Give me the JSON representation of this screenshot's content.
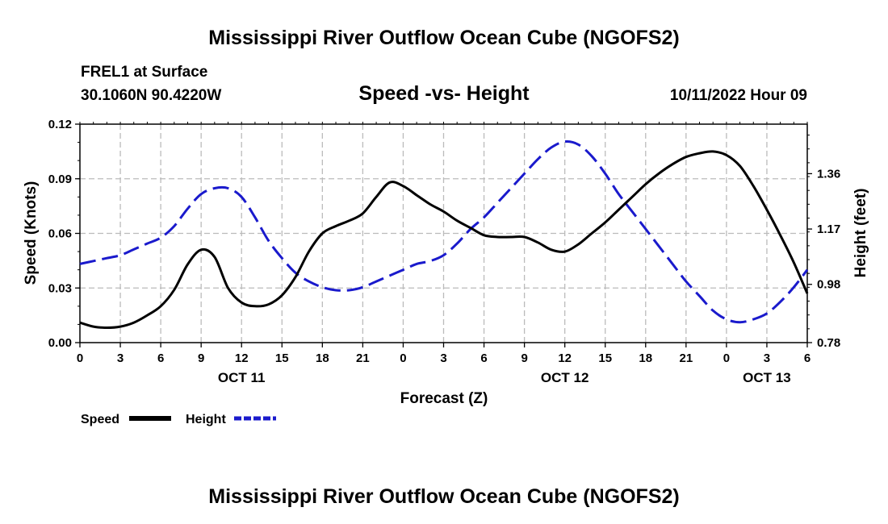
{
  "title": "Mississippi River Outflow Ocean Cube (NGOFS2)",
  "footer_title": "Mississippi River Outflow Ocean Cube (NGOFS2)",
  "station": "FREL1 at Surface",
  "coords": "30.1060N  90.4220W",
  "datetime": "10/11/2022 Hour 09",
  "colors": {
    "speed": "#000000",
    "height": "#1a1acc",
    "grid": "#bbbbbb"
  },
  "chart_data": {
    "type": "line",
    "title": "Speed -vs- Height",
    "xlabel": "Forecast (Z)",
    "ylabel": "Speed (Knots)",
    "y2label": "Height (feet)",
    "x_unit": "forecast hours from OCT 10 00Z",
    "xlim": [
      0,
      54
    ],
    "ylim": [
      0,
      0.12
    ],
    "y2lim": [
      0.78,
      1.53
    ],
    "x_ticks": [
      0,
      3,
      6,
      9,
      12,
      15,
      18,
      21,
      24,
      27,
      30,
      33,
      36,
      39,
      42,
      45,
      48,
      51,
      54
    ],
    "x_tick_labels": [
      "0",
      "3",
      "6",
      "9",
      "12",
      "15",
      "18",
      "21",
      "0",
      "3",
      "6",
      "9",
      "12",
      "15",
      "18",
      "21",
      "0",
      "3",
      "6"
    ],
    "date_labels": [
      {
        "x": 12,
        "label": "OCT 11"
      },
      {
        "x": 36,
        "label": "OCT 12"
      },
      {
        "x": 51,
        "label": "OCT 13"
      }
    ],
    "y_ticks": [
      0,
      0.03,
      0.06,
      0.09,
      0.12
    ],
    "y_tick_labels": [
      "0.00",
      "0.03",
      "0.06",
      "0.09",
      "0.12"
    ],
    "y2_ticks": [
      0.78,
      0.98,
      1.17,
      1.36
    ],
    "y2_tick_labels": [
      "0.78",
      "0.98",
      "1.17",
      "1.36"
    ],
    "series": [
      {
        "name": "Speed",
        "axis": "left",
        "style": "solid",
        "x": [
          0,
          1,
          2,
          3,
          4,
          5,
          6,
          7,
          8,
          9,
          10,
          11,
          12,
          13,
          14,
          15,
          16,
          17,
          18,
          19,
          20,
          21,
          22,
          23,
          24,
          25,
          26,
          27,
          28,
          29,
          30,
          31,
          32,
          33,
          34,
          35,
          36,
          37,
          38,
          39,
          40,
          41,
          42,
          43,
          44,
          45,
          46,
          47,
          48,
          49,
          50,
          51,
          52,
          53,
          54
        ],
        "values": [
          0.011,
          0.0088,
          0.0082,
          0.0088,
          0.011,
          0.015,
          0.02,
          0.029,
          0.043,
          0.051,
          0.047,
          0.03,
          0.022,
          0.02,
          0.021,
          0.026,
          0.036,
          0.05,
          0.06,
          0.064,
          0.067,
          0.071,
          0.08,
          0.088,
          0.086,
          0.081,
          0.076,
          0.072,
          0.067,
          0.063,
          0.059,
          0.058,
          0.058,
          0.058,
          0.055,
          0.051,
          0.05,
          0.054,
          0.06,
          0.066,
          0.073,
          0.08,
          0.087,
          0.093,
          0.098,
          0.102,
          0.104,
          0.105,
          0.103,
          0.097,
          0.086,
          0.073,
          0.059,
          0.044,
          0.027
        ]
      },
      {
        "name": "Height",
        "axis": "right",
        "style": "dashed",
        "x": [
          0,
          1,
          2,
          3,
          4,
          5,
          6,
          7,
          8,
          9,
          10,
          11,
          12,
          13,
          14,
          15,
          16,
          17,
          18,
          19,
          20,
          21,
          22,
          23,
          24,
          25,
          26,
          27,
          28,
          29,
          30,
          31,
          32,
          33,
          34,
          35,
          36,
          37,
          38,
          39,
          40,
          41,
          42,
          43,
          44,
          45,
          46,
          47,
          48,
          49,
          50,
          51,
          52,
          53,
          54
        ],
        "values": [
          1.05,
          1.06,
          1.07,
          1.08,
          1.1,
          1.12,
          1.14,
          1.18,
          1.24,
          1.29,
          1.31,
          1.31,
          1.28,
          1.21,
          1.13,
          1.07,
          1.02,
          0.99,
          0.97,
          0.96,
          0.96,
          0.97,
          0.99,
          1.01,
          1.03,
          1.05,
          1.06,
          1.08,
          1.12,
          1.17,
          1.21,
          1.26,
          1.31,
          1.36,
          1.41,
          1.45,
          1.47,
          1.46,
          1.42,
          1.36,
          1.29,
          1.23,
          1.17,
          1.11,
          1.05,
          0.99,
          0.94,
          0.89,
          0.86,
          0.85,
          0.86,
          0.88,
          0.92,
          0.97,
          1.03
        ]
      }
    ],
    "legend": [
      {
        "name": "Speed",
        "style": "solid"
      },
      {
        "name": "Height",
        "style": "dashed"
      }
    ],
    "grid": true
  }
}
